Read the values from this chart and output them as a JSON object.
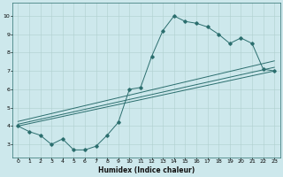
{
  "title": "",
  "xlabel": "Humidex (Indice chaleur)",
  "ylabel": "",
  "xlim": [
    -0.5,
    23.5
  ],
  "ylim": [
    2.3,
    10.7
  ],
  "yticks": [
    3,
    4,
    5,
    6,
    7,
    8,
    9,
    10
  ],
  "xticks": [
    0,
    1,
    2,
    3,
    4,
    5,
    6,
    7,
    8,
    9,
    10,
    11,
    12,
    13,
    14,
    15,
    16,
    17,
    18,
    19,
    20,
    21,
    22,
    23
  ],
  "xtick_labels": [
    "0",
    "1",
    "2",
    "3",
    "4",
    "5",
    "6",
    "7",
    "8",
    "9",
    "10",
    "11",
    "12",
    "13",
    "14",
    "15",
    "16",
    "17",
    "18",
    "19",
    "20",
    "21",
    "22",
    "23"
  ],
  "bg_color": "#cde8ec",
  "line_color": "#2b6e6e",
  "grid_color": "#b0cfcf",
  "curve1_x": [
    0,
    1,
    2,
    3,
    4,
    5,
    6,
    7,
    8,
    9,
    10,
    11,
    12,
    13,
    14,
    15,
    16,
    17,
    18,
    19,
    20,
    21,
    22,
    23
  ],
  "curve1_y": [
    4.0,
    3.7,
    3.5,
    3.0,
    3.3,
    2.7,
    2.7,
    2.9,
    3.5,
    4.2,
    6.0,
    6.1,
    7.8,
    9.2,
    10.0,
    9.7,
    9.6,
    9.4,
    9.0,
    8.5,
    8.8,
    8.5,
    7.1,
    7.0
  ],
  "line1_x": [
    0,
    23
  ],
  "line1_y": [
    4.0,
    7.0
  ],
  "line2_x": [
    0,
    23
  ],
  "line2_y": [
    4.1,
    7.2
  ],
  "line3_x": [
    0,
    23
  ],
  "line3_y": [
    4.25,
    7.55
  ]
}
